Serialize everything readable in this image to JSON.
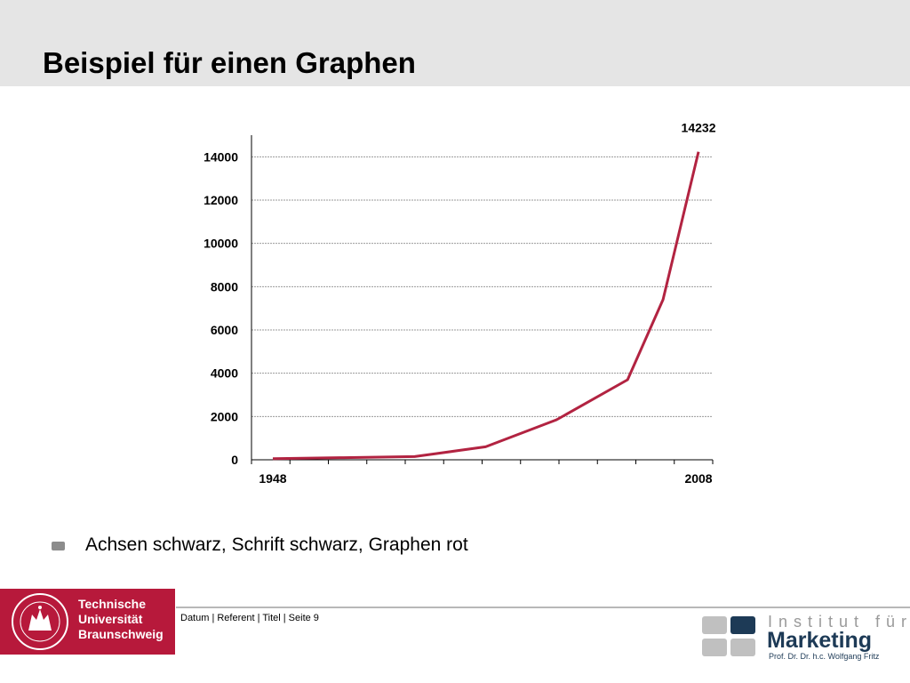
{
  "slide": {
    "title": "Beispiel für einen Graphen",
    "bullet": "Achsen schwarz, Schrift schwarz, Graphen rot"
  },
  "chart_data": {
    "type": "line",
    "x": [
      1948,
      1958,
      1968,
      1978,
      1988,
      1998,
      2003,
      2008
    ],
    "x_tick_labels": [
      "1948",
      "2008"
    ],
    "series": [
      {
        "values": [
          50,
          100,
          150,
          600,
          1850,
          3700,
          7400,
          14232
        ],
        "color": "#b22341"
      }
    ],
    "y_ticks": [
      0,
      2000,
      4000,
      6000,
      8000,
      10000,
      12000,
      14000
    ],
    "ylim": [
      0,
      15000
    ],
    "xlim": [
      1945,
      2010
    ],
    "data_labels": [
      {
        "x": 2008,
        "text": "14232"
      }
    ],
    "grid": "horizontal dashed",
    "title": "",
    "xlabel": "",
    "ylabel": ""
  },
  "footer": {
    "text": "Datum | Referent | Titel | Seite 9",
    "tu_name": [
      "Technische",
      "Universität",
      "Braunschweig"
    ],
    "tu_color": "#b7193b",
    "institut_line": "Institut für",
    "marketing_line": "Marketing",
    "prof_line": "Prof. Dr. Dr. h.c. Wolfgang Fritz",
    "institut_color": "#1d3a56"
  }
}
